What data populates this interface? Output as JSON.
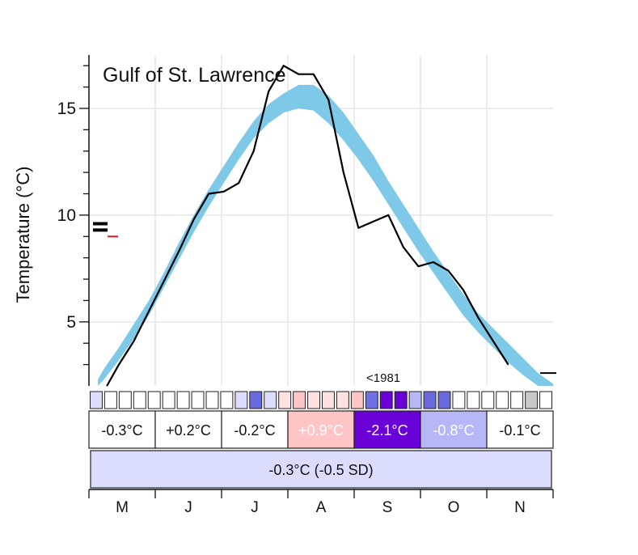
{
  "chart_data": {
    "type": "line",
    "title": "Gulf of St. Lawrence",
    "ylabel": "Temperature (°C)",
    "xlabel": "",
    "ylim": [
      2,
      17.5
    ],
    "yticks": [
      5,
      10,
      15
    ],
    "grid": true,
    "x_weeks": [
      0,
      1,
      2,
      3,
      4,
      5,
      6,
      7,
      8,
      9,
      10,
      11,
      12,
      13,
      14,
      15,
      16,
      17,
      18,
      19,
      20,
      21,
      22,
      23,
      24,
      25,
      26,
      27,
      28,
      29,
      30,
      31
    ],
    "series": [
      {
        "name": "",
        "role": "observed-weekly",
        "color": "#000000",
        "x": [
          1.2,
          2,
          3,
          4,
          5,
          6,
          7,
          8,
          9,
          10,
          11,
          12,
          13,
          14,
          15,
          16,
          17,
          18,
          19,
          20,
          21,
          22,
          23,
          24,
          25,
          26,
          27,
          28
        ],
        "values": [
          2.0,
          3.0,
          4.1,
          5.5,
          6.9,
          8.3,
          9.8,
          11.0,
          11.1,
          11.5,
          13.0,
          15.8,
          17.0,
          16.6,
          16.6,
          15.4,
          12.0,
          9.4,
          9.7,
          10.0,
          8.5,
          7.6,
          7.8,
          7.4,
          6.5,
          5.2,
          4.1,
          3.0
        ]
      },
      {
        "name": "",
        "role": "climatology-band",
        "color": "#7ec9e8",
        "x": [
          0.6,
          1,
          2,
          3,
          4,
          5,
          6,
          7,
          8,
          9,
          10,
          11,
          12,
          13,
          14,
          15,
          16,
          17,
          18,
          19,
          20,
          21,
          22,
          23,
          24,
          25,
          26,
          27,
          28,
          29,
          30,
          31
        ],
        "lower": [
          2.0,
          2.3,
          3.2,
          4.2,
          5.3,
          6.6,
          7.9,
          9.2,
          10.4,
          11.5,
          12.6,
          13.6,
          14.3,
          14.8,
          15.0,
          14.9,
          14.3,
          13.5,
          12.6,
          11.6,
          10.5,
          9.4,
          8.3,
          7.3,
          6.3,
          5.3,
          4.5,
          3.8,
          3.1,
          2.5,
          2.0,
          2.0
        ],
        "upper": [
          2.3,
          2.8,
          3.8,
          4.9,
          6.0,
          7.3,
          8.7,
          10.0,
          11.2,
          12.3,
          13.4,
          14.4,
          15.2,
          15.7,
          16.1,
          16.1,
          15.6,
          14.8,
          13.8,
          12.8,
          11.6,
          10.5,
          9.4,
          8.3,
          7.3,
          6.3,
          5.4,
          4.7,
          4.0,
          3.3,
          2.6,
          2.1
        ]
      }
    ],
    "markers": {
      "left_black": [
        9.3,
        9.6
      ],
      "left_red": 9.0,
      "right_black": 2.6
    },
    "annotation": "<1981",
    "weekly_anomaly_colors": [
      "#dcdcff",
      "#ffffff",
      "#ffffff",
      "#ffffff",
      "#ffffff",
      "#ffffff",
      "#ffffff",
      "#ffffff",
      "#ffffff",
      "#ffffff",
      "#dcdcff",
      "#6a6ae0",
      "#dcdcff",
      "#ffe1e1",
      "#ffc4c4",
      "#ffe1e1",
      "#ffe1e1",
      "#ffe1e1",
      "#ffc4c4",
      "#7070e6",
      "#6a00d8",
      "#6a00d8",
      "#b7b7f7",
      "#6a6ae0",
      "#6a6ae0",
      "#ffffff",
      "#ffffff",
      "#ffffff",
      "#ffffff",
      "#ffffff",
      "#c8c8c8",
      "#ffffff"
    ],
    "months": [
      {
        "label": "M",
        "anomaly": "-0.3°C",
        "color": "#ffffff",
        "text_color": "#111111"
      },
      {
        "label": "J",
        "anomaly": "+0.2°C",
        "color": "#ffffff",
        "text_color": "#111111"
      },
      {
        "label": "J",
        "anomaly": "-0.2°C",
        "color": "#ffffff",
        "text_color": "#111111"
      },
      {
        "label": "A",
        "anomaly": "+0.9°C",
        "color": "#ffc4c4",
        "text_color": "#ffffff"
      },
      {
        "label": "S",
        "anomaly": "-2.1°C",
        "color": "#6a00d8",
        "text_color": "#ffffff"
      },
      {
        "label": "O",
        "anomaly": "-0.8°C",
        "color": "#b7b7f7",
        "text_color": "#ffffff"
      },
      {
        "label": "N",
        "anomaly": "-0.1°C",
        "color": "#ffffff",
        "text_color": "#111111"
      }
    ],
    "season_anomaly": {
      "label": "-0.3°C (-0.5 SD)",
      "color": "#dcdcff"
    }
  }
}
